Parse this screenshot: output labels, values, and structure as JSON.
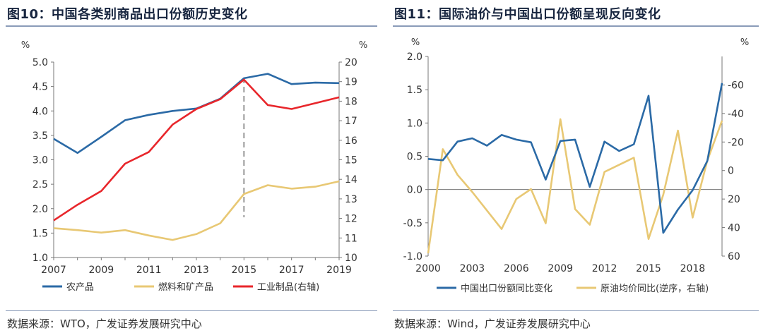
{
  "left": {
    "title": "图10：中国各类别商品出口份额历史变化",
    "source": "数据来源：WTO，广发证券发展研究中心",
    "chart_data": {
      "type": "line",
      "y_unit_left": "%",
      "y_unit_right": "%",
      "ylim_left": [
        1.0,
        5.0
      ],
      "ylim_right": [
        10,
        20
      ],
      "yticks_left": [
        "1.0",
        "1.5",
        "2.0",
        "2.5",
        "3.0",
        "3.5",
        "4.0",
        "4.5",
        "5.0"
      ],
      "yticks_right": [
        "10",
        "11",
        "12",
        "13",
        "14",
        "15",
        "16",
        "17",
        "18",
        "19",
        "20"
      ],
      "xticks": [
        "2007",
        "2009",
        "2011",
        "2013",
        "2015",
        "2017",
        "2019"
      ],
      "x": [
        2007,
        2008,
        2009,
        2010,
        2011,
        2012,
        2013,
        2014,
        2015,
        2016,
        2017,
        2018,
        2019
      ],
      "vline_x": 2015,
      "series": [
        {
          "name": "农产品",
          "axis": "left",
          "color": "#2b6aa6",
          "values": [
            3.43,
            3.14,
            3.47,
            3.81,
            3.92,
            4.0,
            4.05,
            4.25,
            4.67,
            4.76,
            4.55,
            4.58,
            4.57
          ]
        },
        {
          "name": "燃料和矿产品",
          "axis": "left",
          "color": "#e8c874",
          "values": [
            1.6,
            1.56,
            1.51,
            1.56,
            1.45,
            1.36,
            1.48,
            1.7,
            2.3,
            2.48,
            2.41,
            2.45,
            2.56
          ]
        },
        {
          "name": "工业制品(右轴)",
          "axis": "right",
          "color": "#e8262b",
          "values": [
            11.9,
            12.7,
            13.4,
            14.8,
            15.4,
            16.8,
            17.6,
            18.1,
            19.1,
            17.8,
            17.6,
            17.9,
            18.2
          ]
        }
      ]
    }
  },
  "right": {
    "title": "图11：国际油价与中国出口份额呈现反向变化",
    "source": "数据来源：Wind，广发证券发展研究中心",
    "chart_data": {
      "type": "line",
      "y_unit_left": "%",
      "y_unit_right": "%",
      "ylim_left": [
        -1.0,
        2.0
      ],
      "ylim_right_reversed": [
        60,
        -80
      ],
      "yticks_left": [
        "-1.0",
        "-0.5",
        "0.0",
        "0.5",
        "1.0",
        "1.5",
        "2.0"
      ],
      "yticks_right": [
        "60",
        "40",
        "20",
        "0",
        "-20",
        "-40",
        "-60"
      ],
      "xticks": [
        "2000",
        "2003",
        "2006",
        "2009",
        "2012",
        "2015",
        "2018"
      ],
      "x": [
        2000,
        2001,
        2002,
        2003,
        2004,
        2005,
        2006,
        2007,
        2008,
        2009,
        2010,
        2011,
        2012,
        2013,
        2014,
        2015,
        2016,
        2017,
        2018,
        2019,
        2020
      ],
      "series": [
        {
          "name": "中国出口份额同比变化",
          "axis": "left",
          "color": "#2b6aa6",
          "values": [
            0.46,
            0.44,
            0.72,
            0.77,
            0.66,
            0.82,
            0.75,
            0.71,
            0.15,
            0.73,
            0.75,
            0.04,
            0.72,
            0.58,
            0.68,
            1.41,
            -0.65,
            -0.3,
            -0.01,
            0.43,
            1.6
          ]
        },
        {
          "name": "原油均价同比(逆序，右轴)",
          "axis": "right",
          "color": "#e8c874",
          "values": [
            58,
            -15,
            3,
            15,
            28,
            41,
            20,
            13,
            37,
            -36,
            27,
            38,
            1,
            -4,
            -9,
            48,
            17,
            -28,
            33,
            -7,
            -35
          ]
        }
      ]
    }
  }
}
